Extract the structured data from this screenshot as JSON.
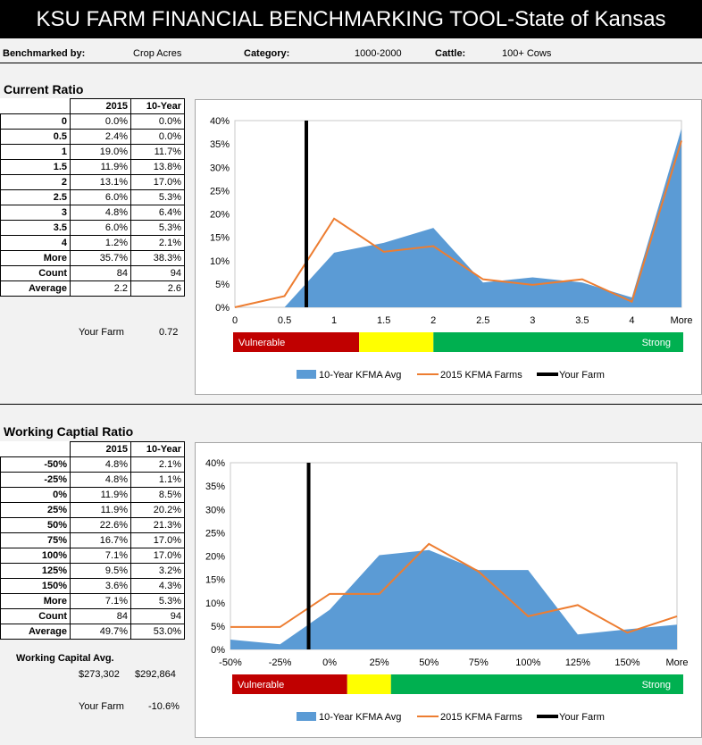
{
  "header": {
    "title": "KSU FARM FINANCIAL BENCHMARKING TOOL-State of Kansas"
  },
  "filters": {
    "benchmarked_by_label": "Benchmarked by:",
    "benchmarked_by_value": "Crop Acres",
    "category_label": "Category:",
    "category_value": "1000-2000",
    "cattle_label": "Cattle:",
    "cattle_value": "100+ Cows"
  },
  "current_ratio": {
    "title": "Current Ratio",
    "columns": [
      "",
      "2015",
      "10-Year"
    ],
    "rows": [
      [
        "0",
        "0.0%",
        "0.0%"
      ],
      [
        "0.5",
        "2.4%",
        "0.0%"
      ],
      [
        "1",
        "19.0%",
        "11.7%"
      ],
      [
        "1.5",
        "11.9%",
        "13.8%"
      ],
      [
        "2",
        "13.1%",
        "17.0%"
      ],
      [
        "2.5",
        "6.0%",
        "5.3%"
      ],
      [
        "3",
        "4.8%",
        "6.4%"
      ],
      [
        "3.5",
        "6.0%",
        "5.3%"
      ],
      [
        "4",
        "1.2%",
        "2.1%"
      ],
      [
        "More",
        "35.7%",
        "38.3%"
      ],
      [
        "Count",
        "84",
        "94"
      ],
      [
        "Average",
        "2.2",
        "2.6"
      ]
    ],
    "your_farm_label": "Your Farm",
    "your_farm_value": "0.72"
  },
  "working_capital": {
    "title": "Working Captial Ratio",
    "columns": [
      "",
      "2015",
      "10-Year"
    ],
    "rows": [
      [
        "-50%",
        "4.8%",
        "2.1%"
      ],
      [
        "-25%",
        "4.8%",
        "1.1%"
      ],
      [
        "0%",
        "11.9%",
        "8.5%"
      ],
      [
        "25%",
        "11.9%",
        "20.2%"
      ],
      [
        "50%",
        "22.6%",
        "21.3%"
      ],
      [
        "75%",
        "16.7%",
        "17.0%"
      ],
      [
        "100%",
        "7.1%",
        "17.0%"
      ],
      [
        "125%",
        "9.5%",
        "3.2%"
      ],
      [
        "150%",
        "3.6%",
        "4.3%"
      ],
      [
        "More",
        "7.1%",
        "5.3%"
      ],
      [
        "Count",
        "84",
        "94"
      ],
      [
        "Average",
        "49.7%",
        "53.0%"
      ]
    ],
    "avg_label": "Working Capital Avg.",
    "avg_2015": "$273,302",
    "avg_10yr": "$292,864",
    "your_farm_label": "Your Farm",
    "your_farm_value": "-10.6%"
  },
  "chart_data": [
    {
      "type": "area",
      "categories": [
        "0",
        "0.5",
        "1",
        "1.5",
        "2",
        "2.5",
        "3",
        "3.5",
        "4",
        "More"
      ],
      "series": [
        {
          "name": "10-Year KFMA Avg",
          "type": "area",
          "values": [
            0.0,
            0.0,
            11.7,
            13.8,
            17.0,
            5.3,
            6.4,
            5.3,
            2.1,
            38.3
          ]
        },
        {
          "name": "2015 KFMA Farms",
          "type": "line",
          "values": [
            0.0,
            2.4,
            19.0,
            11.9,
            13.1,
            6.0,
            4.8,
            6.0,
            1.2,
            35.7
          ]
        }
      ],
      "marker": {
        "name": "Your Farm",
        "value": 0.72
      },
      "y_ticks": [
        "0%",
        "5%",
        "10%",
        "15%",
        "20%",
        "25%",
        "30%",
        "35%",
        "40%"
      ],
      "ylim": [
        0,
        40
      ],
      "legend": [
        "10-Year KFMA Avg",
        "2015 KFMA Farms",
        "Your Farm"
      ],
      "legend_position": "bottom",
      "band": {
        "vulnerable_label": "Vulnerable",
        "strong_label": "Strong",
        "segments": [
          {
            "color": "#c00000",
            "end": 0.28
          },
          {
            "color": "#ffff00",
            "end": 0.445
          },
          {
            "color": "#00b050",
            "end": 1.0
          }
        ]
      }
    },
    {
      "type": "area",
      "categories": [
        "-50%",
        "-25%",
        "0%",
        "25%",
        "50%",
        "75%",
        "100%",
        "125%",
        "150%",
        "More"
      ],
      "series": [
        {
          "name": "10-Year KFMA Avg",
          "type": "area",
          "values": [
            2.1,
            1.1,
            8.5,
            20.2,
            21.3,
            17.0,
            17.0,
            3.2,
            4.3,
            5.3
          ]
        },
        {
          "name": "2015 KFMA Farms",
          "type": "line",
          "values": [
            4.8,
            4.8,
            11.9,
            11.9,
            22.6,
            16.7,
            7.1,
            9.5,
            3.6,
            7.1
          ]
        }
      ],
      "marker": {
        "name": "Your Farm",
        "value": -10.6
      },
      "y_ticks": [
        "0%",
        "5%",
        "10%",
        "15%",
        "20%",
        "25%",
        "30%",
        "35%",
        "40%"
      ],
      "ylim": [
        0,
        40
      ],
      "legend": [
        "10-Year KFMA Avg",
        "2015 KFMA Farms",
        "Your Farm"
      ],
      "legend_position": "bottom",
      "band": {
        "vulnerable_label": "Vulnerable",
        "strong_label": "Strong",
        "segments": [
          {
            "color": "#c00000",
            "end": 0.255
          },
          {
            "color": "#ffff00",
            "end": 0.352
          },
          {
            "color": "#00b050",
            "end": 1.0
          }
        ]
      }
    }
  ],
  "colors": {
    "area": "#5b9bd5",
    "line": "#ed7d31",
    "marker": "#000000"
  }
}
